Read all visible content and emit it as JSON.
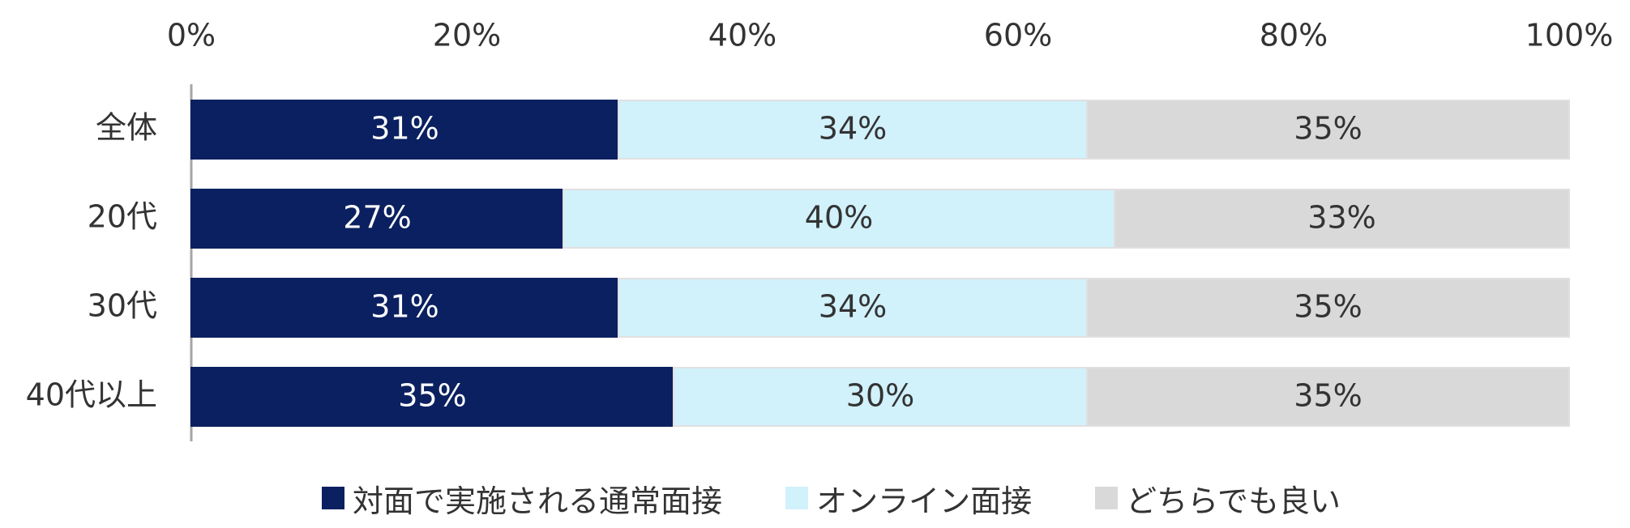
{
  "chart_data": {
    "type": "bar",
    "orientation": "horizontal",
    "stacked": true,
    "categories": [
      "全体",
      "20代",
      "30代",
      "40代以上"
    ],
    "series": [
      {
        "name": "対面で実施される通常面接",
        "values": [
          31,
          27,
          31,
          35
        ],
        "labels": [
          "31%",
          "27%",
          "31%",
          "35%"
        ],
        "color": "#0b2060",
        "label_color": "#ffffff"
      },
      {
        "name": "オンライン面接",
        "values": [
          34,
          40,
          34,
          30
        ],
        "labels": [
          "34%",
          "40%",
          "34%",
          "30%"
        ],
        "color": "#d1f1fb",
        "label_color": "#333333"
      },
      {
        "name": "どちらでも良い",
        "values": [
          35,
          33,
          35,
          35
        ],
        "labels": [
          "35%",
          "33%",
          "35%",
          "35%"
        ],
        "color": "#d9d9d9",
        "label_color": "#333333"
      }
    ],
    "x_ticks": [
      "0%",
      "20%",
      "40%",
      "60%",
      "80%",
      "100%"
    ],
    "xlim": [
      0,
      100
    ],
    "x_axis_position": "top",
    "grid": false,
    "legend_position": "bottom",
    "title": "",
    "xlabel": "",
    "ylabel": ""
  },
  "colors": {
    "axis_line": "#a6a6a6",
    "tick_text": "#333333",
    "category_text": "#333333",
    "bar_border": "#e0e0e0"
  }
}
